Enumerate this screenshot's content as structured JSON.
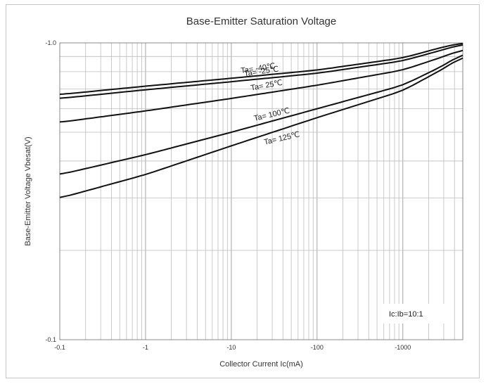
{
  "chart_data": {
    "type": "line",
    "title": "Base-Emitter Saturation Voltage",
    "xlabel": "Collector Current   Ic(mA)",
    "ylabel": "Base-Emitter Voltage   Vbesat(V)",
    "x_scale": "log",
    "y_scale": "log",
    "xlim": [
      0.1,
      5000
    ],
    "ylim": [
      0.1,
      1.0
    ],
    "x_ticks": [
      0.1,
      1,
      10,
      100,
      1000
    ],
    "x_tick_labels": [
      "-0.1",
      "-1",
      "-10",
      "-100",
      "-1000"
    ],
    "y_ticks": [
      0.1,
      1.0
    ],
    "y_tick_labels": [
      "-0.1",
      "-1.0"
    ],
    "grid": true,
    "annotation": "Ic:Ib=10:1",
    "series": [
      {
        "name": "Ta= -40℃",
        "x": [
          0.1,
          1,
          10,
          100,
          1000,
          3000,
          5000
        ],
        "y": [
          0.67,
          0.715,
          0.76,
          0.81,
          0.89,
          0.97,
          1.0
        ]
      },
      {
        "name": "Ta= -25℃",
        "x": [
          0.1,
          1,
          10,
          100,
          1000,
          3000,
          5000
        ],
        "y": [
          0.65,
          0.695,
          0.74,
          0.79,
          0.87,
          0.95,
          0.99
        ]
      },
      {
        "name": "Ta= 25℃",
        "x": [
          0.1,
          1,
          10,
          100,
          1000,
          3000,
          5000
        ],
        "y": [
          0.54,
          0.59,
          0.65,
          0.72,
          0.81,
          0.9,
          0.95
        ]
      },
      {
        "name": "Ta= 100℃",
        "x": [
          0.1,
          1,
          10,
          100,
          1000,
          3000,
          5000
        ],
        "y": [
          0.36,
          0.42,
          0.5,
          0.6,
          0.72,
          0.84,
          0.92
        ]
      },
      {
        "name": "Ta= 125℃",
        "x": [
          0.1,
          1,
          10,
          100,
          1000,
          3000,
          5000
        ],
        "y": [
          0.3,
          0.36,
          0.45,
          0.56,
          0.69,
          0.82,
          0.9
        ]
      }
    ]
  }
}
